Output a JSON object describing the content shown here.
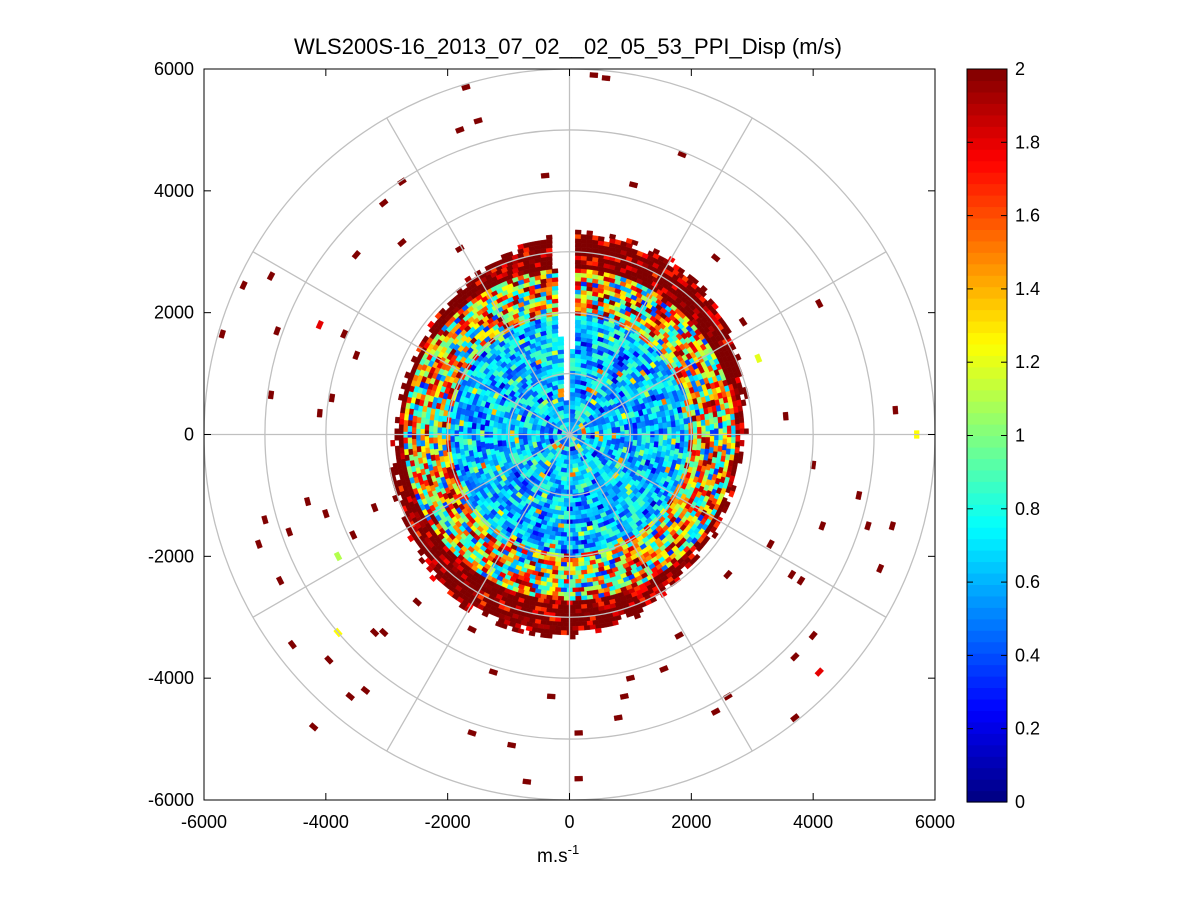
{
  "chart_data": {
    "type": "heatmap",
    "subtype": "polar-ppi",
    "title": "WLS200S-16_2013_07_02__02_05_53_PPI_Disp (m/s)",
    "xlabel_base": "m.s",
    "xlabel_exp": "-1",
    "xlim": [
      -6000,
      6000
    ],
    "ylim": [
      -6000,
      6000
    ],
    "x_ticks": [
      -6000,
      -4000,
      -2000,
      0,
      2000,
      4000,
      6000
    ],
    "x_tick_labels": [
      "-6000",
      "-4000",
      "-2000",
      "0",
      "2000",
      "4000",
      "6000"
    ],
    "y_ticks": [
      6000,
      4000,
      2000,
      0,
      -2000,
      -4000,
      -6000
    ],
    "y_tick_labels": [
      "6000",
      "4000",
      "2000",
      "0",
      "-2000",
      "-4000",
      "-6000"
    ],
    "polar_rings": [
      1000,
      2000,
      3000,
      4000,
      5000,
      6000
    ],
    "polar_spokes_deg": [
      0,
      30,
      60,
      90,
      120,
      150,
      180,
      210,
      240,
      270,
      300,
      330
    ],
    "colorbar": {
      "min": 0,
      "max": 2,
      "ticks": [
        0,
        0.2,
        0.4,
        0.6,
        0.8,
        1,
        1.2,
        1.4,
        1.6,
        1.8,
        2
      ],
      "tick_labels": [
        "0",
        "0.2",
        "0.4",
        "0.6",
        "0.8",
        "1",
        "1.2",
        "1.4",
        "1.6",
        "1.8",
        "2"
      ],
      "colormap": "jet"
    },
    "dense_region": {
      "radius_max_m": 3300,
      "gap_azimuth_deg": [
        -5,
        2
      ],
      "description_bands": [
        {
          "r_from": 0,
          "r_to": 2000,
          "typical_value": 0.6
        },
        {
          "r_from": 2000,
          "r_to": 2800,
          "typical_value": 1.3
        },
        {
          "r_from": 2800,
          "r_to": 3300,
          "typical_value": 2.0
        }
      ]
    },
    "sparse_cells": [
      {
        "x": -1700,
        "y": 5700,
        "v": 2.0
      },
      {
        "x": -1500,
        "y": 5150,
        "v": 2.0
      },
      {
        "x": -1800,
        "y": 5000,
        "v": 2.0
      },
      {
        "x": 400,
        "y": 5900,
        "v": 2.0
      },
      {
        "x": 600,
        "y": 5850,
        "v": 2.0
      },
      {
        "x": 1850,
        "y": 4600,
        "v": 2.0
      },
      {
        "x": -400,
        "y": 4250,
        "v": 2.0
      },
      {
        "x": 1050,
        "y": 4100,
        "v": 2.0
      },
      {
        "x": -2750,
        "y": 4150,
        "v": 2.0
      },
      {
        "x": -3050,
        "y": 3800,
        "v": 2.0
      },
      {
        "x": -2750,
        "y": 3150,
        "v": 2.0
      },
      {
        "x": -1800,
        "y": 3050,
        "v": 2.0
      },
      {
        "x": -3500,
        "y": 2950,
        "v": 2.0
      },
      {
        "x": -5350,
        "y": 2450,
        "v": 2.0
      },
      {
        "x": -4900,
        "y": 2600,
        "v": 2.0
      },
      {
        "x": -5700,
        "y": 1650,
        "v": 2.0
      },
      {
        "x": -4800,
        "y": 1700,
        "v": 2.0
      },
      {
        "x": -4100,
        "y": 1800,
        "v": 1.8
      },
      {
        "x": -3700,
        "y": 1650,
        "v": 2.0
      },
      {
        "x": -3500,
        "y": 1300,
        "v": 2.0
      },
      {
        "x": -4900,
        "y": 650,
        "v": 2.0
      },
      {
        "x": -4100,
        "y": 350,
        "v": 2.0
      },
      {
        "x": -3900,
        "y": 600,
        "v": 2.0
      },
      {
        "x": 2400,
        "y": 2900,
        "v": 2.0
      },
      {
        "x": 2850,
        "y": 1850,
        "v": 2.0
      },
      {
        "x": 4100,
        "y": 2150,
        "v": 2.0
      },
      {
        "x": 3100,
        "y": 1250,
        "v": 1.2
      },
      {
        "x": 3550,
        "y": 300,
        "v": 2.0
      },
      {
        "x": 5350,
        "y": 400,
        "v": 2.0
      },
      {
        "x": 5700,
        "y": 0,
        "v": 1.25
      },
      {
        "x": 4000,
        "y": -500,
        "v": 2.0
      },
      {
        "x": 4750,
        "y": -1000,
        "v": 2.0
      },
      {
        "x": 4900,
        "y": -1500,
        "v": 2.0
      },
      {
        "x": 5300,
        "y": -1500,
        "v": 2.0
      },
      {
        "x": 5100,
        "y": -2200,
        "v": 2.0
      },
      {
        "x": 4150,
        "y": -1500,
        "v": 2.0
      },
      {
        "x": 3300,
        "y": -1800,
        "v": 2.0
      },
      {
        "x": 3650,
        "y": -2300,
        "v": 2.0
      },
      {
        "x": 3800,
        "y": -2400,
        "v": 2.0
      },
      {
        "x": 2600,
        "y": -2300,
        "v": 2.0
      },
      {
        "x": 4000,
        "y": -3300,
        "v": 2.0
      },
      {
        "x": 3700,
        "y": -3650,
        "v": 2.0
      },
      {
        "x": 4100,
        "y": -3900,
        "v": 1.8
      },
      {
        "x": 3700,
        "y": -4650,
        "v": 2.0
      },
      {
        "x": 2600,
        "y": -4300,
        "v": 2.0
      },
      {
        "x": 2400,
        "y": -4550,
        "v": 2.0
      },
      {
        "x": 1800,
        "y": -3300,
        "v": 2.0
      },
      {
        "x": 1550,
        "y": -3850,
        "v": 2.0
      },
      {
        "x": 1000,
        "y": -4000,
        "v": 2.0
      },
      {
        "x": 900,
        "y": -4300,
        "v": 2.0
      },
      {
        "x": 800,
        "y": -4650,
        "v": 2.0
      },
      {
        "x": 150,
        "y": -4900,
        "v": 2.0
      },
      {
        "x": -300,
        "y": -4300,
        "v": 2.0
      },
      {
        "x": 150,
        "y": -5650,
        "v": 2.0
      },
      {
        "x": -700,
        "y": -5700,
        "v": 2.0
      },
      {
        "x": -950,
        "y": -5100,
        "v": 2.0
      },
      {
        "x": -1600,
        "y": -4900,
        "v": 2.0
      },
      {
        "x": -1250,
        "y": -3900,
        "v": 2.0
      },
      {
        "x": -1600,
        "y": -3200,
        "v": 2.0
      },
      {
        "x": -2500,
        "y": -2750,
        "v": 2.0
      },
      {
        "x": -3050,
        "y": -3250,
        "v": 2.0
      },
      {
        "x": -3200,
        "y": -3250,
        "v": 2.0
      },
      {
        "x": -3800,
        "y": -3250,
        "v": 1.25
      },
      {
        "x": -3950,
        "y": -3700,
        "v": 2.0
      },
      {
        "x": -3350,
        "y": -4200,
        "v": 2.0
      },
      {
        "x": -3600,
        "y": -4300,
        "v": 2.0
      },
      {
        "x": -4200,
        "y": -4800,
        "v": 2.0
      },
      {
        "x": -4550,
        "y": -3450,
        "v": 2.0
      },
      {
        "x": -4750,
        "y": -2400,
        "v": 2.0
      },
      {
        "x": -5100,
        "y": -1800,
        "v": 2.0
      },
      {
        "x": -5000,
        "y": -1400,
        "v": 2.0
      },
      {
        "x": -4600,
        "y": -1600,
        "v": 2.0
      },
      {
        "x": -4300,
        "y": -1100,
        "v": 2.0
      },
      {
        "x": -4000,
        "y": -1300,
        "v": 2.0
      },
      {
        "x": -3800,
        "y": -2000,
        "v": 1.1
      },
      {
        "x": -3550,
        "y": -1650,
        "v": 2.0
      },
      {
        "x": -3200,
        "y": -1200,
        "v": 2.0
      }
    ]
  }
}
